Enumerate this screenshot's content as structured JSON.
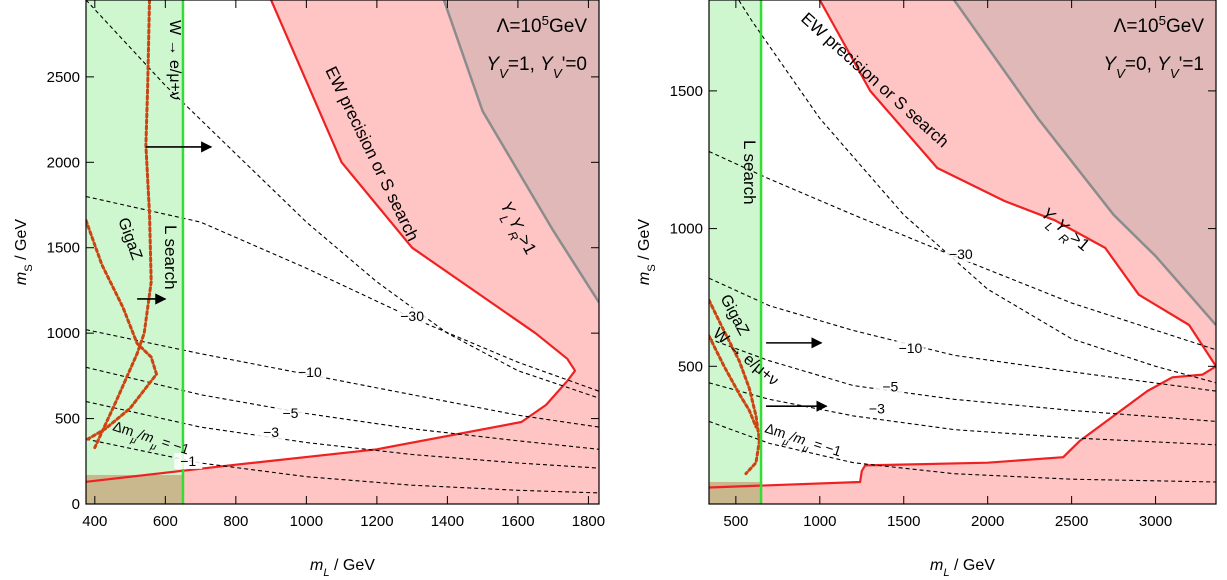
{
  "chart_data": [
    {
      "type": "line",
      "xlabel_main": "m",
      "xlabel_sub": "L",
      "xlabel_unit": " / GeV",
      "ylabel_main": "m",
      "ylabel_sub": "S",
      "ylabel_unit": " / GeV",
      "xlim": [
        375,
        1830
      ],
      "ylim": [
        0,
        2950
      ],
      "xticks": [
        400,
        600,
        800,
        1000,
        1200,
        1400,
        1600,
        1800
      ],
      "yticks": [
        0,
        500,
        1000,
        1500,
        2000,
        2500
      ],
      "header": {
        "lambda": "Λ=10",
        "exp": "5",
        "unit": "GeV",
        "y1": "Y",
        "y1s": "V",
        "y1v": "=1, ",
        "y2": "Y",
        "y2s": "V",
        "y2v": "'=0"
      },
      "colors": {
        "lsearch": "#ccf7cc",
        "lsearch_line": "#33dd33",
        "ew": "#ffc4c4",
        "ew_line": "#ee2222",
        "yly": "#e0b8b8",
        "yly_line": "#8c8c8c",
        "low": "#c9b78e",
        "dashed": "#000000",
        "dotted": "#cc4411"
      },
      "lsearch_limit": 650,
      "lower_bound": 170,
      "ew_boundary": [
        [
          375,
          130
        ],
        [
          800,
          230
        ],
        [
          1200,
          320
        ],
        [
          1610,
          480
        ],
        [
          1680,
          580
        ],
        [
          1740,
          720
        ],
        [
          1762,
          780
        ],
        [
          1740,
          850
        ],
        [
          1650,
          1000
        ],
        [
          1300,
          1500
        ],
        [
          1100,
          2000
        ],
        [
          900,
          2950
        ]
      ],
      "yly_boundary": [
        [
          1390,
          2950
        ],
        [
          1500,
          2300
        ],
        [
          1700,
          1600
        ],
        [
          1830,
          1180
        ]
      ],
      "contours": [
        {
          "label": "−30",
          "points": [
            [
              375,
              1800
            ],
            [
              700,
              1650
            ],
            [
              1000,
              1380
            ],
            [
              1300,
              1090
            ],
            [
              1600,
              830
            ],
            [
              1830,
              660
            ]
          ],
          "label_at": [
            1300,
            1090
          ]
        },
        {
          "label": "−10",
          "points": [
            [
              375,
              1020
            ],
            [
              700,
              880
            ],
            [
              1000,
              760
            ],
            [
              1300,
              640
            ],
            [
              1600,
              520
            ],
            [
              1830,
              450
            ]
          ],
          "label_at": [
            1010,
            760
          ]
        },
        {
          "label": "−5",
          "points": [
            [
              375,
              800
            ],
            [
              700,
              640
            ],
            [
              1000,
              530
            ],
            [
              1300,
              440
            ],
            [
              1600,
              370
            ],
            [
              1830,
              320
            ]
          ],
          "label_at": [
            955,
            520
          ]
        },
        {
          "label": "−3",
          "points": [
            [
              375,
              600
            ],
            [
              700,
              450
            ],
            [
              1000,
              360
            ],
            [
              1300,
              290
            ],
            [
              1600,
              240
            ],
            [
              1830,
              210
            ]
          ],
          "label_at": [
            900,
            410
          ]
        },
        {
          "label": "−1",
          "points": [
            [
              375,
              380
            ],
            [
              700,
              240
            ],
            [
              1000,
              160
            ],
            [
              1300,
              110
            ],
            [
              1600,
              80
            ],
            [
              1830,
              65
            ]
          ],
          "label_at": [
            665,
            240
          ]
        },
        {
          "label": "",
          "points": [
            [
              375,
              2950
            ],
            [
              600,
              2450
            ],
            [
              800,
              2050
            ],
            [
              1000,
              1650
            ],
            [
              1200,
              1300
            ],
            [
              1400,
              1000
            ],
            [
              1600,
              780
            ],
            [
              1830,
              620
            ]
          ],
          "label_at": null
        }
      ],
      "dotted_curves": [
        [
          [
            555,
            2950
          ],
          [
            550,
            2450
          ],
          [
            545,
            2100
          ],
          [
            555,
            1700
          ],
          [
            560,
            1300
          ],
          [
            540,
            1000
          ],
          [
            520,
            880
          ],
          [
            460,
            600
          ],
          [
            400,
            330
          ]
        ],
        [
          [
            375,
            1660
          ],
          [
            420,
            1400
          ],
          [
            480,
            1150
          ],
          [
            520,
            940
          ],
          [
            560,
            860
          ],
          [
            575,
            760
          ],
          [
            500,
            560
          ],
          [
            430,
            440
          ],
          [
            380,
            380
          ]
        ]
      ],
      "labels": {
        "lsearch": "L search",
        "ew": "EW precision or S search",
        "yly_a": "Y",
        "yly_a_sub": "L",
        "yly_b": "Y",
        "yly_b_sub": "R",
        "yly_c": ">1",
        "gigaz": "GigaZ",
        "w_decay": "W → e/μ+ν",
        "dm": "Δm",
        "dm_sub": "μ",
        "dm_mid": "/m",
        "dm_sub2": "μ",
        "dm_eq": " = −1"
      },
      "arrows": [
        {
          "from": [
            545,
            2090
          ],
          "to": [
            730,
            2090
          ]
        },
        {
          "from": [
            520,
            1200
          ],
          "to": [
            600,
            1200
          ]
        }
      ]
    },
    {
      "type": "line",
      "xlabel_main": "m",
      "xlabel_sub": "L",
      "xlabel_unit": " / GeV",
      "ylabel_main": "m",
      "ylabel_sub": "S",
      "ylabel_unit": " / GeV",
      "xlim": [
        340,
        3360
      ],
      "ylim": [
        0,
        1830
      ],
      "xticks": [
        500,
        1000,
        1500,
        2000,
        2500,
        3000
      ],
      "yticks": [
        500,
        1000,
        1500
      ],
      "header": {
        "lambda": "Λ=10",
        "exp": "5",
        "unit": "GeV",
        "y1": "Y",
        "y1s": "V",
        "y1v": "=0, ",
        "y2": "Y",
        "y2s": "V",
        "y2v": "'=1"
      },
      "colors": {
        "lsearch": "#ccf7cc",
        "lsearch_line": "#33dd33",
        "ew": "#ffc4c4",
        "ew_line": "#ee2222",
        "yly": "#e0b8b8",
        "yly_line": "#8c8c8c",
        "low": "#c9b78e",
        "dashed": "#000000",
        "dotted": "#cc4411"
      },
      "lsearch_limit": 650,
      "lower_bound": 80,
      "ew_boundary": [
        [
          340,
          60
        ],
        [
          1240,
          80
        ],
        [
          1250,
          120
        ],
        [
          1270,
          140
        ],
        [
          2000,
          150
        ],
        [
          2450,
          170
        ],
        [
          2550,
          230
        ],
        [
          2950,
          410
        ],
        [
          3100,
          460
        ],
        [
          3280,
          470
        ],
        [
          3360,
          500
        ],
        [
          3200,
          650
        ],
        [
          2900,
          760
        ],
        [
          2700,
          930
        ],
        [
          2400,
          1030
        ],
        [
          2100,
          1100
        ],
        [
          1700,
          1220
        ],
        [
          1300,
          1500
        ],
        [
          1000,
          1830
        ]
      ],
      "yly_boundary": [
        [
          1800,
          1830
        ],
        [
          2300,
          1400
        ],
        [
          2750,
          1050
        ],
        [
          3000,
          900
        ],
        [
          3360,
          650
        ]
      ],
      "contours": [
        {
          "label": "−30",
          "points": [
            [
              340,
              1280
            ],
            [
              700,
              1180
            ],
            [
              1200,
              1050
            ],
            [
              1800,
              900
            ],
            [
              2500,
              730
            ],
            [
              3360,
              560
            ]
          ],
          "label_at": [
            1840,
            900
          ]
        },
        {
          "label": "−10",
          "points": [
            [
              340,
              820
            ],
            [
              700,
              720
            ],
            [
              1200,
              630
            ],
            [
              1800,
              540
            ],
            [
              2500,
              480
            ],
            [
              3360,
              410
            ]
          ],
          "label_at": [
            1540,
            560
          ]
        },
        {
          "label": "−5",
          "points": [
            [
              340,
              600
            ],
            [
              700,
              520
            ],
            [
              1200,
              430
            ],
            [
              1800,
              380
            ],
            [
              2500,
              340
            ],
            [
              3360,
              300
            ]
          ],
          "label_at": [
            1420,
            420
          ]
        },
        {
          "label": "−3",
          "points": [
            [
              340,
              440
            ],
            [
              700,
              380
            ],
            [
              1200,
              320
            ],
            [
              1800,
              270
            ],
            [
              2500,
              240
            ],
            [
              3360,
              215
            ]
          ],
          "label_at": [
            1340,
            340
          ]
        },
        {
          "label": "−1",
          "points": [
            [
              340,
              300
            ],
            [
              700,
              220
            ],
            [
              1200,
              150
            ],
            [
              1800,
              110
            ],
            [
              2500,
              90
            ],
            [
              3360,
              80
            ]
          ],
          "label_at": null
        },
        {
          "label": "",
          "points": [
            [
              340,
              2000
            ],
            [
              600,
              1750
            ],
            [
              1000,
              1400
            ],
            [
              1500,
              1050
            ],
            [
              2000,
              780
            ],
            [
              2500,
              600
            ],
            [
              3000,
              500
            ],
            [
              3360,
              440
            ]
          ],
          "label_at": null
        }
      ],
      "dotted_curves": [
        [
          [
            340,
            740
          ],
          [
            420,
            640
          ],
          [
            520,
            520
          ],
          [
            580,
            420
          ],
          [
            620,
            320
          ],
          [
            640,
            230
          ],
          [
            620,
            150
          ],
          [
            560,
            110
          ]
        ],
        [
          [
            340,
            610
          ],
          [
            430,
            500
          ],
          [
            520,
            400
          ],
          [
            580,
            340
          ],
          [
            620,
            280
          ]
        ]
      ],
      "labels": {
        "lsearch": "L search",
        "ew": "EW precision or S search",
        "yly_a": "Y",
        "yly_a_sub": "L",
        "yly_b": "Y",
        "yly_b_sub": "R",
        "yly_c": ">1",
        "gigaz": "GigaZ",
        "w_decay": "W → e/μ+ν",
        "dm": "Δm",
        "dm_sub": "μ",
        "dm_mid": "/m",
        "dm_sub2": "μ",
        "dm_eq": " = −1"
      },
      "arrows": [
        {
          "from": [
            680,
            585
          ],
          "to": [
            1010,
            585
          ]
        },
        {
          "from": [
            680,
            355
          ],
          "to": [
            1040,
            355
          ]
        }
      ]
    }
  ]
}
